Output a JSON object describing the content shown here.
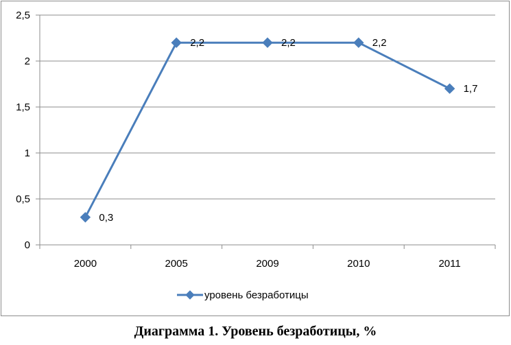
{
  "caption": "Диаграмма 1. Уровень безработицы, %",
  "chart_data": {
    "type": "line",
    "categories": [
      "2000",
      "2005",
      "2009",
      "2010",
      "2011"
    ],
    "series": [
      {
        "name": "уровень безработицы",
        "values": [
          0.3,
          2.2,
          2.2,
          2.2,
          1.7
        ],
        "labels": [
          "0,3",
          "2,2",
          "2,2",
          "2,2",
          "1,7"
        ],
        "color": "#4a7ebb"
      }
    ],
    "ylim": [
      0,
      2.5
    ],
    "yticks": [
      0,
      0.5,
      1,
      1.5,
      2,
      2.5
    ],
    "ytick_labels": [
      "0",
      "0,5",
      "1",
      "1,5",
      "2",
      "2,5"
    ],
    "grid": "horizontal",
    "legend_position": "bottom",
    "marker": "diamond",
    "gridline_color": "#8c8c8c"
  }
}
